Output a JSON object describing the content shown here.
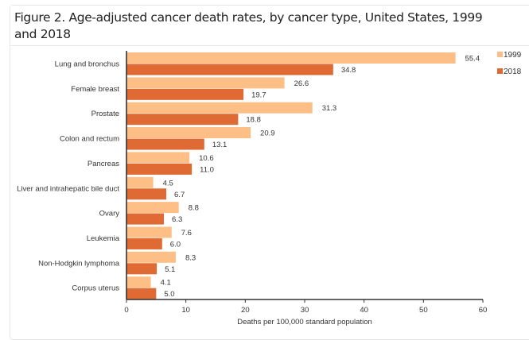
{
  "figure": {
    "title": "Figure 2. Age-adjusted cancer death rates, by cancer type, United States, 1999 and 2018"
  },
  "colors": {
    "series_1999": "#fdbf85",
    "series_2018": "#e06a34",
    "axis": "#333333"
  },
  "chart_data": {
    "type": "bar",
    "orientation": "horizontal",
    "title": "Age-adjusted cancer death rates, by cancer type, United States, 1999 and 2018",
    "xlabel": "Deaths per 100,000 standard population",
    "ylabel": "",
    "xlim": [
      0,
      60
    ],
    "xticks": [
      0,
      10,
      20,
      30,
      40,
      50,
      60
    ],
    "grid": false,
    "legend_position": "top-right",
    "categories": [
      "Lung and bronchus",
      "Female breast",
      "Prostate",
      "Colon and rectum",
      "Pancreas",
      "Liver and intrahepatic bile duct",
      "Ovary",
      "Leukemia",
      "Non-Hodgkin lymphoma",
      "Corpus uterus"
    ],
    "series": [
      {
        "name": "1999",
        "values": [
          55.4,
          26.6,
          31.3,
          20.9,
          10.6,
          4.5,
          8.8,
          7.6,
          8.3,
          4.1
        ]
      },
      {
        "name": "2018",
        "values": [
          34.8,
          19.7,
          18.8,
          13.1,
          11.0,
          6.7,
          6.3,
          6.0,
          5.1,
          5.0
        ]
      }
    ]
  }
}
